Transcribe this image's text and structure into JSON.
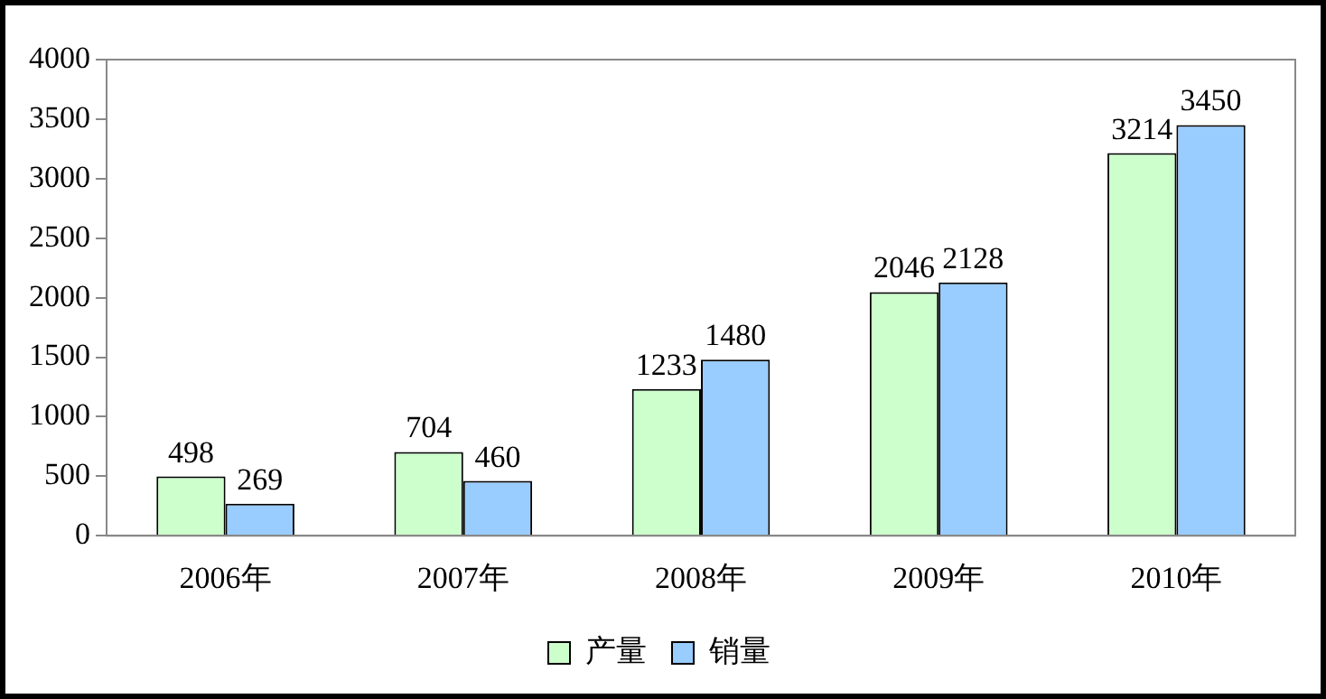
{
  "chart_data": {
    "type": "bar",
    "categories": [
      "2006年",
      "2007年",
      "2008年",
      "2009年",
      "2010年"
    ],
    "series": [
      {
        "name": "产量",
        "color": "#ccffcc",
        "values": [
          498,
          704,
          1233,
          2046,
          3214
        ]
      },
      {
        "name": "销量",
        "color": "#99ccff",
        "values": [
          269,
          460,
          1480,
          2128,
          3450
        ]
      }
    ],
    "ylim": [
      0,
      4000
    ],
    "yticks": [
      0,
      500,
      1000,
      1500,
      2000,
      2500,
      3000,
      3500,
      4000
    ],
    "grid": false,
    "legend": "bottom",
    "data_labels": true
  }
}
